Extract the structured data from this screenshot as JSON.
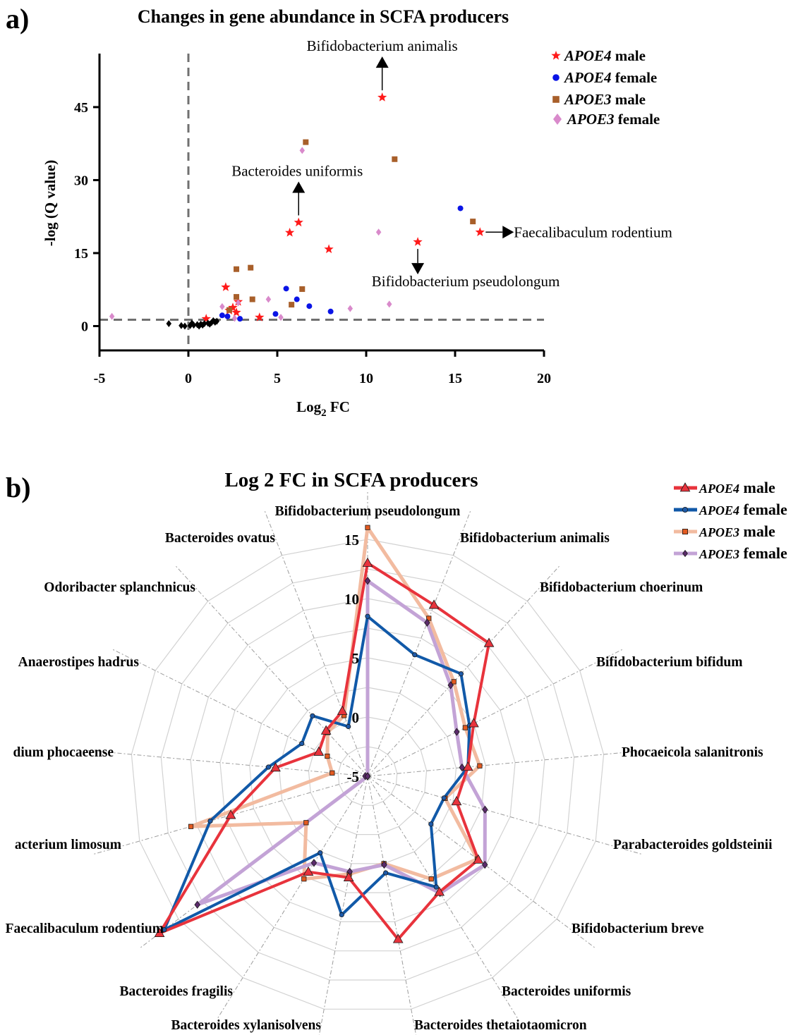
{
  "panel_a_label": "a)",
  "panel_b_label": "b)",
  "chart_data": [
    {
      "type": "scatter",
      "title": "Changes in gene abundance in SCFA producers",
      "xlabel_main": "Log",
      "xlabel_sub": "2",
      "xlabel_suffix": " FC",
      "ylabel": "-log (Q value)",
      "xlim": [
        -5,
        20
      ],
      "ylim": [
        -5,
        56
      ],
      "xticks": [
        -5,
        0,
        5,
        10,
        15,
        20
      ],
      "yticks": [
        0,
        15,
        30,
        45
      ],
      "xtick_labels": [
        "-5",
        "0",
        "5",
        "10",
        "15",
        "20"
      ],
      "ytick_labels": [
        "0",
        "15",
        "30",
        "45"
      ],
      "vline_x": 0,
      "hline_y": 1.3,
      "series": [
        {
          "name_italic": "APOE4",
          "name_rest": " male",
          "color": "#ff1a1a",
          "marker": "star",
          "points": [
            [
              10.9,
              47
            ],
            [
              6.2,
              21.3
            ],
            [
              5.7,
              19.2
            ],
            [
              7.9,
              15.8
            ],
            [
              12.9,
              17.3
            ],
            [
              16.4,
              19.3
            ],
            [
              2.1,
              8.0
            ],
            [
              2.5,
              3.8
            ],
            [
              2.7,
              2.8
            ],
            [
              2.8,
              5.0
            ],
            [
              4.0,
              1.8
            ],
            [
              1.0,
              1.5
            ],
            [
              2.3,
              3.2
            ]
          ]
        },
        {
          "name_italic": "APOE4",
          "name_rest": " female",
          "color": "#0a14e6",
          "marker": "circle",
          "points": [
            [
              15.3,
              24.2
            ],
            [
              5.5,
              7.7
            ],
            [
              6.1,
              5.5
            ],
            [
              6.8,
              4.1
            ],
            [
              8.0,
              3.0
            ],
            [
              4.9,
              2.5
            ],
            [
              1.9,
              2.2
            ],
            [
              2.2,
              2.0
            ],
            [
              2.9,
              1.5
            ]
          ]
        },
        {
          "name_italic": "APOE3",
          "name_rest": " male",
          "color": "#a85f2a",
          "marker": "square",
          "points": [
            [
              6.6,
              37.8
            ],
            [
              11.6,
              34.3
            ],
            [
              16.0,
              21.5
            ],
            [
              2.7,
              11.7
            ],
            [
              3.5,
              12.0
            ],
            [
              6.4,
              7.6
            ],
            [
              2.7,
              6.0
            ],
            [
              3.6,
              5.5
            ],
            [
              5.8,
              4.4
            ],
            [
              2.3,
              3.3
            ]
          ]
        },
        {
          "name_italic": "APOE3",
          "name_rest": " female",
          "color": "#d98acb",
          "marker": "diamond",
          "points": [
            [
              6.4,
              36.1
            ],
            [
              10.7,
              19.3
            ],
            [
              11.3,
              4.5
            ],
            [
              9.1,
              3.6
            ],
            [
              4.5,
              5.5
            ],
            [
              2.8,
              4.8
            ],
            [
              1.9,
              4.0
            ],
            [
              5.2,
              1.8
            ],
            [
              -4.3,
              2.0
            ],
            [
              2.6,
              1.6
            ]
          ]
        },
        {
          "name": "",
          "color": "#000000",
          "marker": "diamond",
          "points": [
            [
              -1.1,
              0.5
            ],
            [
              -0.4,
              0.1
            ],
            [
              -0.2,
              0.0
            ],
            [
              0.1,
              0.1
            ],
            [
              0.3,
              0.2
            ],
            [
              0.5,
              0.3
            ],
            [
              0.7,
              0.4
            ],
            [
              0.9,
              0.5
            ],
            [
              1.1,
              0.6
            ],
            [
              1.3,
              0.7
            ],
            [
              1.5,
              0.8
            ],
            [
              1.6,
              1.0
            ],
            [
              0.6,
              0.0
            ],
            [
              0.8,
              0.2
            ],
            [
              1.2,
              0.4
            ],
            [
              1.4,
              1.1
            ],
            [
              0.2,
              0.6
            ]
          ]
        }
      ],
      "annotations": [
        {
          "text": "Bifidobacterium animalis",
          "point": [
            10.9,
            47
          ],
          "direction": "up"
        },
        {
          "text": "Bacteroides uniformis",
          "point": [
            6.2,
            21.3
          ],
          "direction": "up"
        },
        {
          "text": "Faecalibaculum rodentium",
          "point": [
            16.4,
            19.3
          ],
          "direction": "right"
        },
        {
          "text": "Bifidobacterium pseudolongum",
          "point": [
            12.9,
            17.3
          ],
          "direction": "down"
        }
      ]
    },
    {
      "type": "radar",
      "title": "Log 2 FC in SCFA producers",
      "rlim": [
        -5,
        15
      ],
      "rticks": [
        -5,
        0,
        5,
        10,
        15
      ],
      "rtick_labels": [
        "-5",
        "0",
        "5",
        "10",
        "15"
      ],
      "categories": [
        "Bifidobacterium pseudolongum",
        "Bifidobacterium animalis",
        "Bifidobacterium choerinum",
        "Bifidobacterium bifidum",
        "Phocaeicola salanitronis",
        "Parabacteroides goldsteinii",
        "Bifidobacterium breve",
        "Bacteroides uniformis",
        "Bacteroides thetaiotaomicron",
        "Bacteroides xylanisolvens",
        "Bacteroides fragilis",
        "Faecalibaculum rodentium",
        "acterium limosum",
        "dium phocaeense",
        "Anaerostipes hadrus",
        "Odoribacter splanchnicus",
        "Bacteroides ovatus"
      ],
      "series": [
        {
          "name_italic": "APOE4",
          "name_rest": " male",
          "color": "#e8333c",
          "marker": "triangle",
          "marker_color": "#e8333c",
          "values": [
            13.0,
            10.5,
            10.2,
            5.0,
            3.5,
            2.8,
            6.7,
            6.5,
            9.0,
            3.7,
            4.5,
            17.0,
            7.0,
            2.8,
            -0.4,
            0.2,
            0.9
          ]
        },
        {
          "name_italic": "APOE4",
          "name_rest": " female",
          "color": "#1159a8",
          "marker": "circle",
          "marker_color": "#1e5aa8",
          "values": [
            8.5,
            6.0,
            6.7,
            4.6,
            3.5,
            1.7,
            1.7,
            6.0,
            3.3,
            6.9,
            2.6,
            16.5,
            8.8,
            3.4,
            1.2,
            1.9,
            -0.5
          ],
          "sticky_zero": true
        },
        {
          "name_italic": "APOE3",
          "name_rest": " male",
          "color": "#f2bba0",
          "marker": "square",
          "marker_color": "#e35a20",
          "values": [
            16.0,
            9.3,
            5.8,
            4.2,
            4.5,
            1.8,
            6.6,
            5.2,
            2.5,
            3.4,
            5.2,
            1.5,
            10.5,
            -2.0,
            -1.2,
            0.0,
            0.5
          ]
        },
        {
          "name_italic": "APOE3",
          "name_rest": " female",
          "color": "#c3a3d6",
          "marker": "diamond",
          "marker_color": "#5b2a6b",
          "values": [
            11.5,
            8.9,
            5.4,
            3.4,
            3.0,
            5.3,
            7.4,
            6.6,
            2.6,
            3.2,
            3.6,
            13.0,
            -5.0,
            -4.8,
            -5.0,
            -5.0,
            -5.0
          ]
        }
      ]
    }
  ]
}
